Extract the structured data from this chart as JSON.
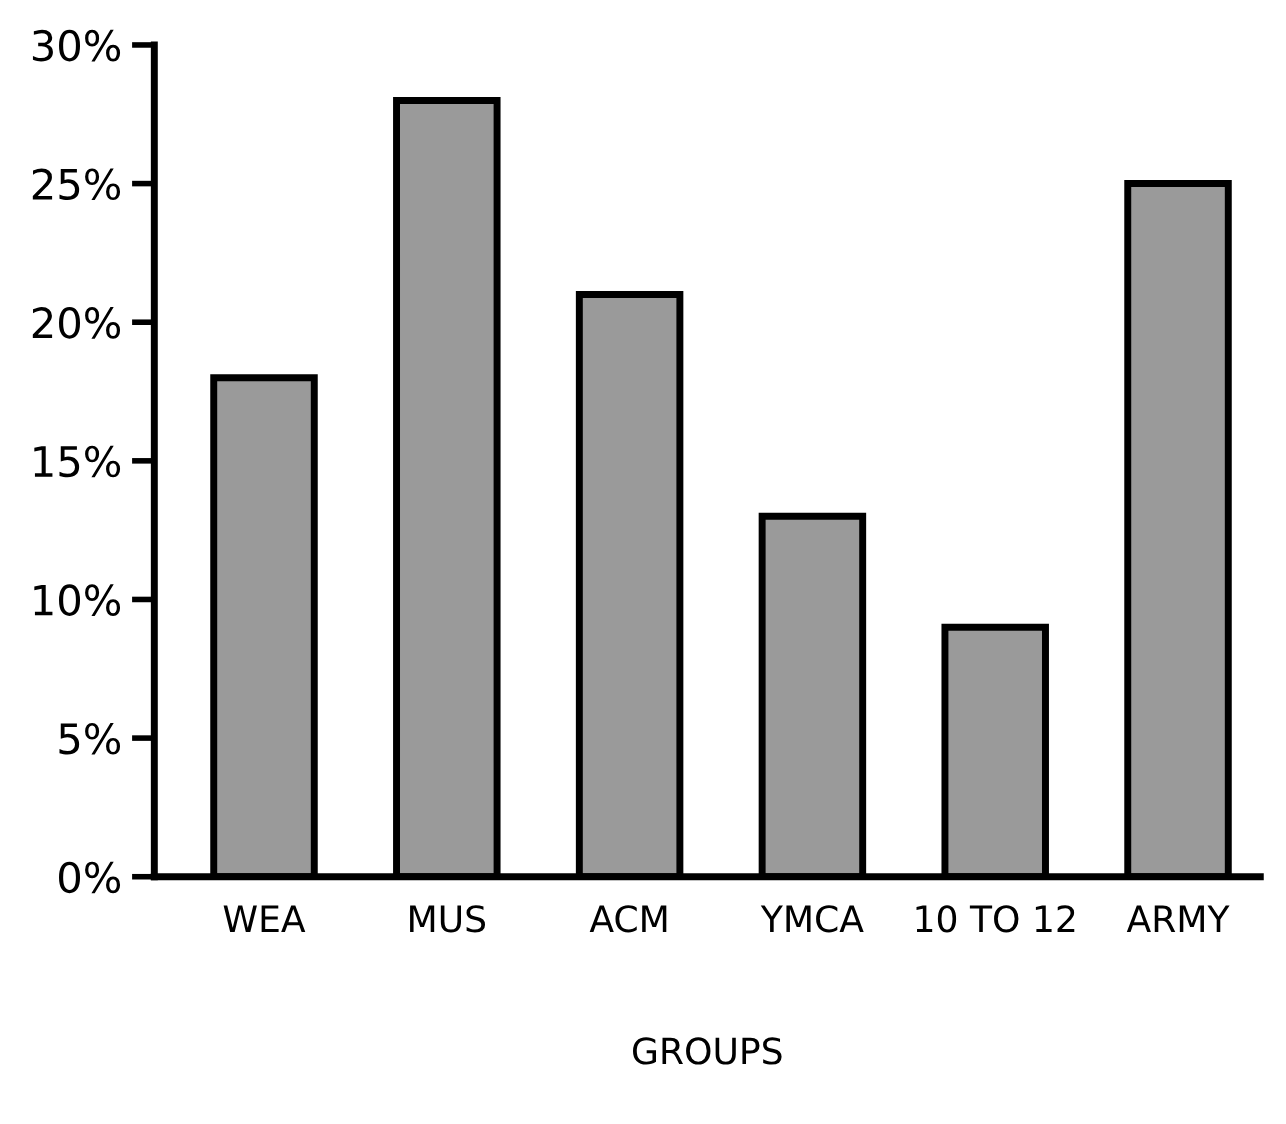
{
  "chart_data": {
    "type": "bar",
    "xlabel": "GROUPS",
    "categories": [
      "WEA",
      "MUS",
      "ACM",
      "YMCA",
      "10 TO 12",
      "ARMY"
    ],
    "values": [
      18,
      28,
      21,
      13,
      9,
      25
    ],
    "color": "#9a9a9a",
    "ylim": [
      0,
      30
    ],
    "yticks": [
      {
        "value": 0,
        "label": "0%"
      },
      {
        "value": 5,
        "label": "5%"
      },
      {
        "value": 10,
        "label": "10%"
      },
      {
        "value": 15,
        "label": "15%"
      },
      {
        "value": 20,
        "label": "20%"
      },
      {
        "value": 25,
        "label": "25%"
      },
      {
        "value": 30,
        "label": "30%"
      }
    ],
    "grid": false,
    "legend": false
  }
}
